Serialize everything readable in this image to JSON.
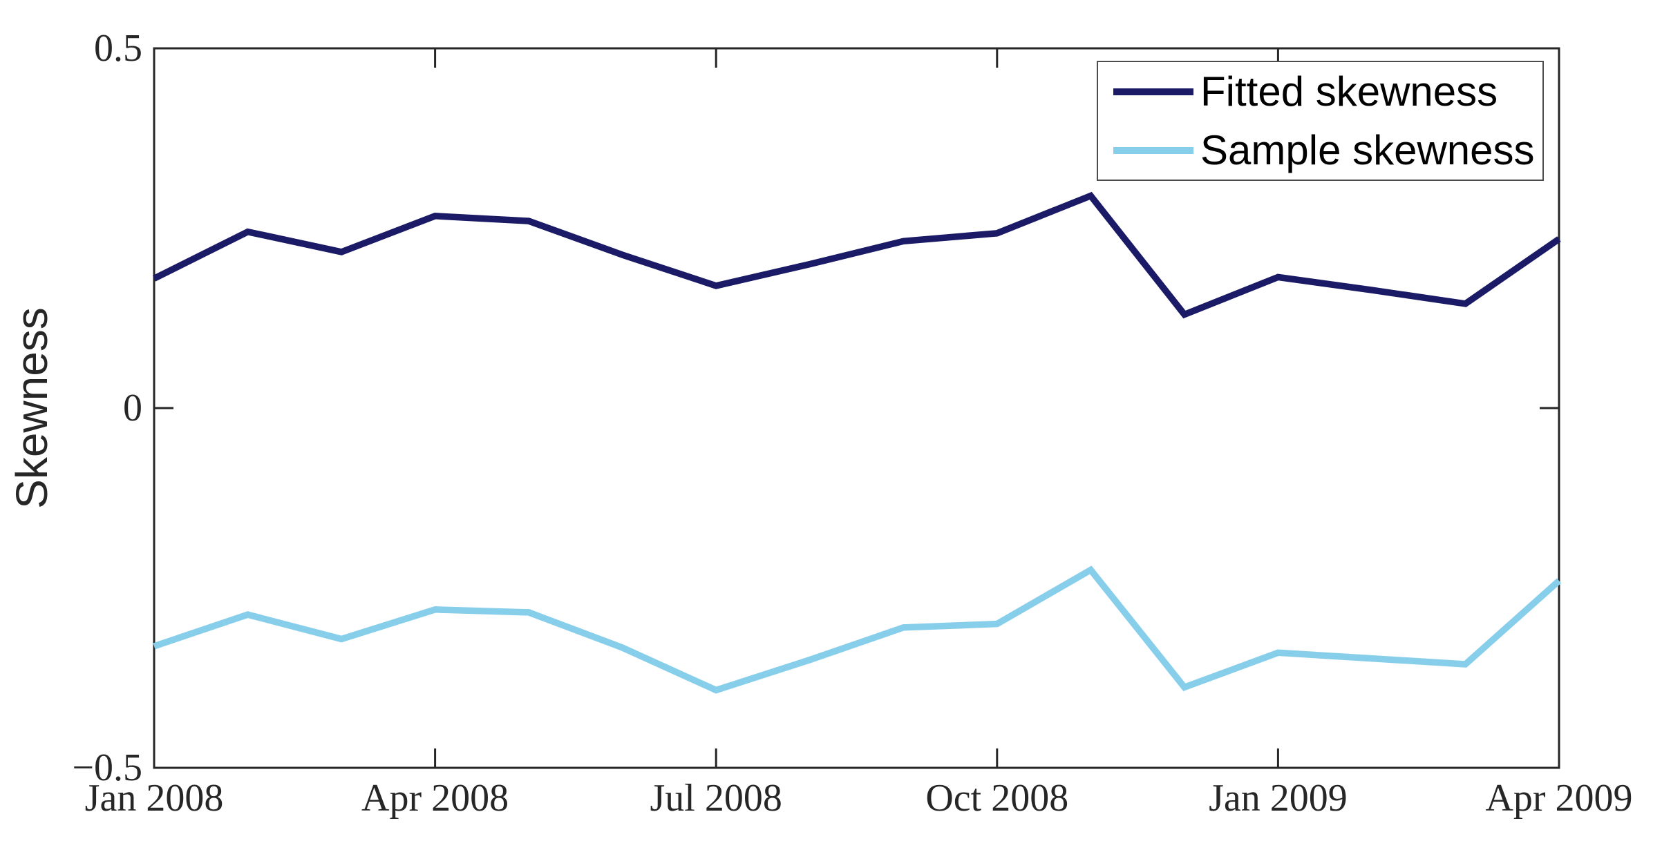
{
  "figure": {
    "background_color": "#FFFFFF",
    "axis_color": "#262626"
  },
  "chart_data": {
    "type": "line",
    "title": "",
    "xlabel": "",
    "ylabel": "Skewness",
    "grid": false,
    "legend_position": "top-right",
    "ylim": [
      -0.5,
      0.5
    ],
    "y_tick_values": [
      0.5,
      0,
      -0.5
    ],
    "y_tick_labels": [
      "0.5",
      "0",
      "−0.5"
    ],
    "x_tick_indices": [
      0,
      3,
      6,
      9,
      12,
      15
    ],
    "x_tick_labels": [
      "Jan 2008",
      "Apr 2008",
      "Jul 2008",
      "Oct 2008",
      "Jan 2009",
      "Apr 2009"
    ],
    "x": [
      "Jan 2008",
      "Feb 2008",
      "Mar 2008",
      "Apr 2008",
      "May 2008",
      "Jun 2008",
      "Jul 2008",
      "Aug 2008",
      "Sep 2008",
      "Oct 2008",
      "Nov 2008",
      "Dec 2008",
      "Jan 2009",
      "Feb 2009",
      "Mar 2009",
      "Apr 2009"
    ],
    "series": [
      {
        "name": "Fitted skewness",
        "color": "#1A1A66",
        "values": [
          0.18,
          0.245,
          0.217,
          0.267,
          0.26,
          0.213,
          0.17,
          0.2,
          0.232,
          0.243,
          0.295,
          0.13,
          0.182,
          0.164,
          0.145,
          0.235
        ]
      },
      {
        "name": "Sample skewness",
        "color": "#87CEEB",
        "values": [
          -0.331,
          -0.287,
          -0.321,
          -0.28,
          -0.284,
          -0.333,
          -0.392,
          -0.35,
          -0.305,
          -0.3,
          -0.225,
          -0.388,
          -0.34,
          -0.348,
          -0.356,
          -0.24
        ]
      }
    ]
  }
}
